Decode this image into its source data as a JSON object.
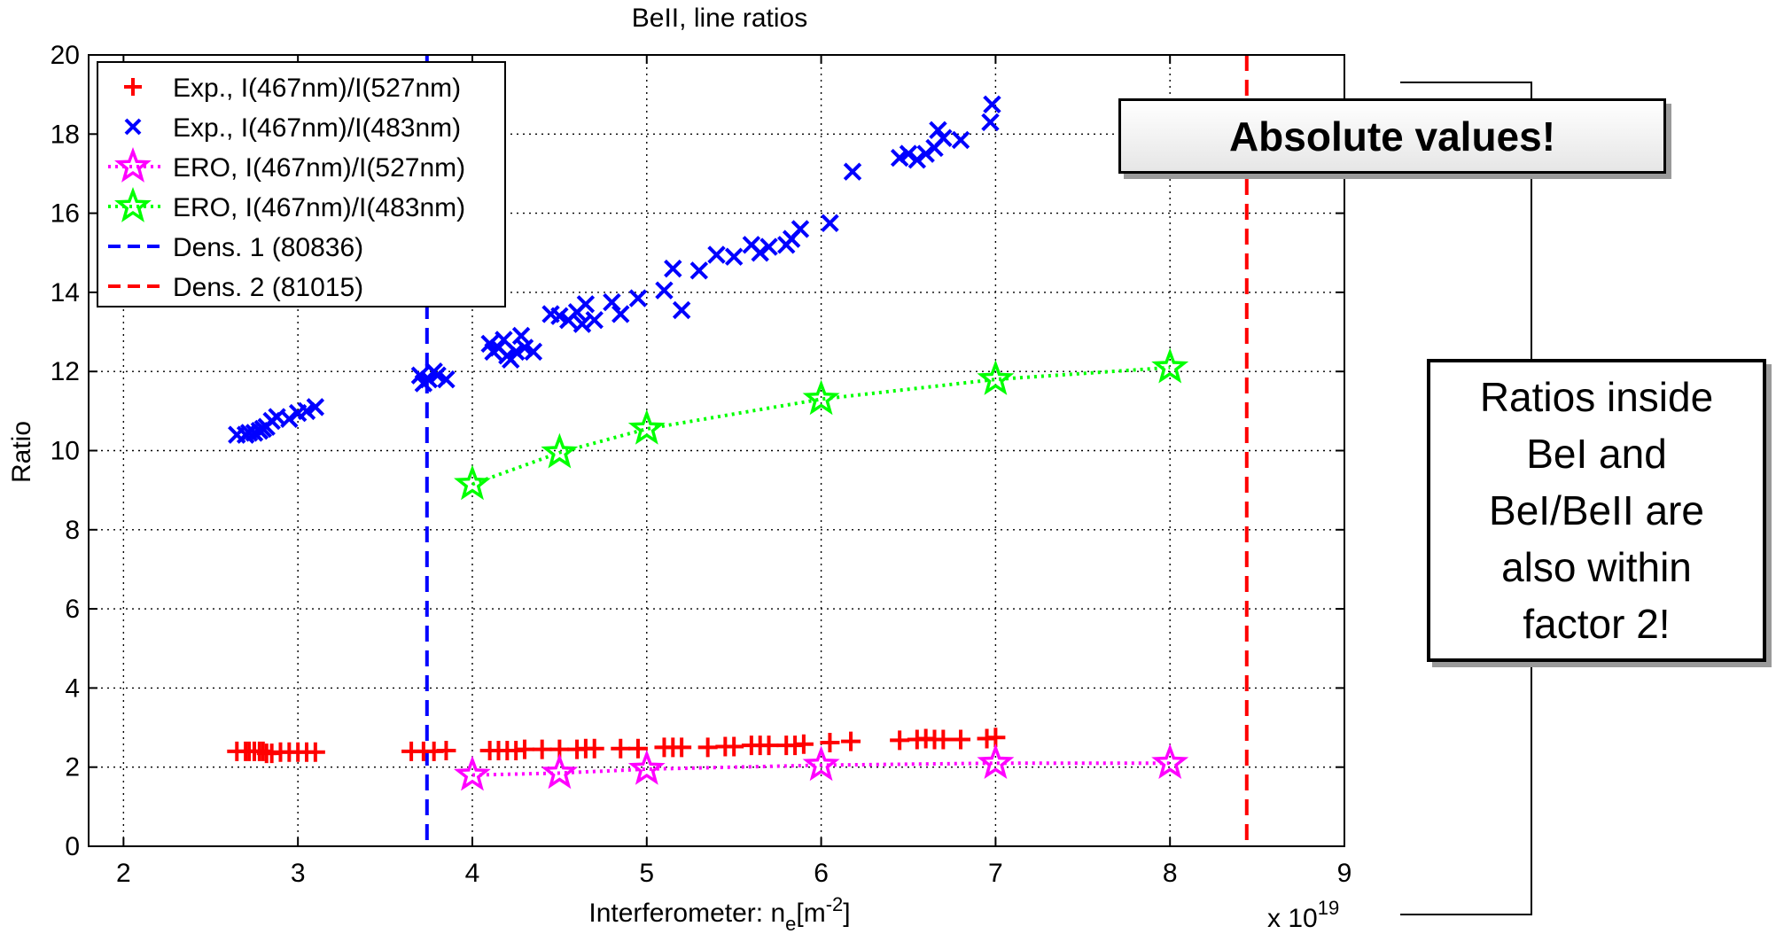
{
  "chart_data": {
    "type": "scatter",
    "title": "BeII, line ratios",
    "xlabel_main": "Interferometer: n",
    "xlabel_sub": "e",
    "xlabel_unit_open": "[m",
    "xlabel_unit_sup": "-2",
    "xlabel_unit_close": "]",
    "x_exponent_label": "x 10",
    "x_exponent_power": "19",
    "ylabel": "Ratio",
    "xlim": [
      1.8,
      9
    ],
    "ylim": [
      0,
      20
    ],
    "xticks": [
      2,
      3,
      4,
      5,
      6,
      7,
      8,
      9
    ],
    "yticks": [
      0,
      2,
      4,
      6,
      8,
      10,
      12,
      14,
      16,
      18,
      20
    ],
    "grid": true,
    "legend_position": "top-left",
    "series": [
      {
        "name": "Exp., I(467nm)/I(527nm)",
        "marker": "plus",
        "color": "#ff0000",
        "points": [
          [
            2.65,
            2.4
          ],
          [
            2.7,
            2.4
          ],
          [
            2.72,
            2.4
          ],
          [
            2.75,
            2.4
          ],
          [
            2.78,
            2.4
          ],
          [
            2.8,
            2.4
          ],
          [
            2.82,
            2.35
          ],
          [
            2.85,
            2.35
          ],
          [
            2.9,
            2.38
          ],
          [
            2.95,
            2.38
          ],
          [
            3.0,
            2.38
          ],
          [
            3.05,
            2.38
          ],
          [
            3.1,
            2.38
          ],
          [
            3.65,
            2.4
          ],
          [
            3.72,
            2.4
          ],
          [
            3.78,
            2.4
          ],
          [
            3.85,
            2.42
          ],
          [
            4.1,
            2.42
          ],
          [
            4.15,
            2.42
          ],
          [
            4.2,
            2.42
          ],
          [
            4.25,
            2.42
          ],
          [
            4.3,
            2.45
          ],
          [
            4.4,
            2.45
          ],
          [
            4.5,
            2.45
          ],
          [
            4.6,
            2.45
          ],
          [
            4.65,
            2.47
          ],
          [
            4.7,
            2.47
          ],
          [
            4.85,
            2.47
          ],
          [
            4.95,
            2.47
          ],
          [
            5.1,
            2.5
          ],
          [
            5.15,
            2.5
          ],
          [
            5.2,
            2.5
          ],
          [
            5.35,
            2.5
          ],
          [
            5.45,
            2.52
          ],
          [
            5.5,
            2.52
          ],
          [
            5.6,
            2.55
          ],
          [
            5.65,
            2.55
          ],
          [
            5.7,
            2.55
          ],
          [
            5.8,
            2.55
          ],
          [
            5.85,
            2.55
          ],
          [
            5.9,
            2.58
          ],
          [
            6.05,
            2.62
          ],
          [
            6.17,
            2.65
          ],
          [
            6.45,
            2.68
          ],
          [
            6.55,
            2.7
          ],
          [
            6.6,
            2.72
          ],
          [
            6.65,
            2.7
          ],
          [
            6.7,
            2.7
          ],
          [
            6.8,
            2.7
          ],
          [
            6.95,
            2.72
          ],
          [
            7.0,
            2.75
          ]
        ]
      },
      {
        "name": "Exp., I(467nm)/I(483nm)",
        "marker": "cross",
        "color": "#0000ff",
        "points": [
          [
            2.65,
            10.4
          ],
          [
            2.7,
            10.4
          ],
          [
            2.72,
            10.45
          ],
          [
            2.75,
            10.45
          ],
          [
            2.78,
            10.5
          ],
          [
            2.8,
            10.55
          ],
          [
            2.82,
            10.6
          ],
          [
            2.85,
            10.75
          ],
          [
            2.88,
            10.85
          ],
          [
            2.95,
            10.8
          ],
          [
            3.0,
            10.95
          ],
          [
            3.05,
            11.0
          ],
          [
            3.1,
            11.1
          ],
          [
            3.7,
            11.9
          ],
          [
            3.72,
            11.7
          ],
          [
            3.75,
            11.8
          ],
          [
            3.78,
            12.0
          ],
          [
            3.8,
            11.9
          ],
          [
            3.85,
            11.8
          ],
          [
            4.1,
            12.7
          ],
          [
            4.12,
            12.5
          ],
          [
            4.15,
            12.6
          ],
          [
            4.18,
            12.8
          ],
          [
            4.2,
            12.4
          ],
          [
            4.22,
            12.3
          ],
          [
            4.25,
            12.5
          ],
          [
            4.28,
            12.9
          ],
          [
            4.3,
            12.6
          ],
          [
            4.35,
            12.5
          ],
          [
            4.45,
            13.45
          ],
          [
            4.5,
            13.4
          ],
          [
            4.55,
            13.3
          ],
          [
            4.6,
            13.5
          ],
          [
            4.63,
            13.2
          ],
          [
            4.65,
            13.7
          ],
          [
            4.7,
            13.3
          ],
          [
            4.8,
            13.75
          ],
          [
            4.85,
            13.45
          ],
          [
            4.95,
            13.85
          ],
          [
            5.1,
            14.05
          ],
          [
            5.15,
            14.6
          ],
          [
            5.2,
            13.55
          ],
          [
            5.3,
            14.55
          ],
          [
            5.4,
            14.95
          ],
          [
            5.5,
            14.9
          ],
          [
            5.6,
            15.2
          ],
          [
            5.65,
            15.0
          ],
          [
            5.7,
            15.15
          ],
          [
            5.8,
            15.2
          ],
          [
            5.83,
            15.35
          ],
          [
            5.88,
            15.6
          ],
          [
            6.05,
            15.75
          ],
          [
            6.18,
            17.05
          ],
          [
            6.45,
            17.4
          ],
          [
            6.5,
            17.5
          ],
          [
            6.55,
            17.35
          ],
          [
            6.6,
            17.5
          ],
          [
            6.65,
            17.65
          ],
          [
            6.67,
            18.1
          ],
          [
            6.7,
            17.9
          ],
          [
            6.8,
            17.85
          ],
          [
            6.97,
            18.3
          ],
          [
            6.98,
            18.75
          ]
        ]
      },
      {
        "name": "ERO, I(467nm)/I(527nm)",
        "marker": "star",
        "line": "dotted",
        "color": "#ff00ff",
        "points": [
          [
            4,
            1.8
          ],
          [
            4.5,
            1.85
          ],
          [
            5,
            1.95
          ],
          [
            6,
            2.05
          ],
          [
            7,
            2.1
          ],
          [
            8,
            2.1
          ]
        ]
      },
      {
        "name": "ERO, I(467nm)/I(483nm)",
        "marker": "star",
        "line": "dotted",
        "color": "#00ff00",
        "points": [
          [
            4,
            9.15
          ],
          [
            4.5,
            9.95
          ],
          [
            5,
            10.55
          ],
          [
            6,
            11.3
          ],
          [
            7,
            11.8
          ],
          [
            8,
            12.1
          ]
        ]
      },
      {
        "name": "Dens. 1 (80836)",
        "type": "vline",
        "line": "dashed",
        "color": "#0000ff",
        "x": 3.74
      },
      {
        "name": "Dens. 2 (81015)",
        "type": "vline",
        "line": "dashed",
        "color": "#ff0000",
        "x": 8.44
      }
    ]
  },
  "annotations": {
    "absolute_values": "Absolute values!",
    "ratios_note_lines": [
      "Ratios inside",
      "BeI and",
      "BeI/BeII are",
      "also within",
      "factor 2!"
    ]
  }
}
